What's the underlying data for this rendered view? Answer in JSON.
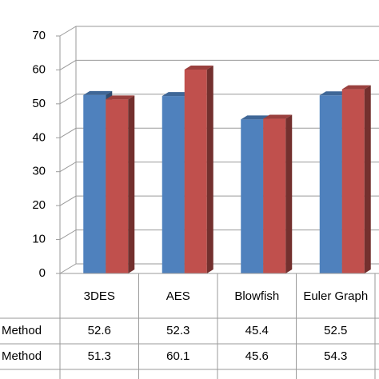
{
  "chart_data": {
    "type": "bar3d",
    "categories": [
      "3DES",
      "AES",
      "Blowfish",
      "Euler Graph"
    ],
    "series": [
      {
        "name": "Method",
        "color": "#4f81bd",
        "values": [
          52.6,
          52.3,
          45.4,
          52.5
        ]
      },
      {
        "name": "Method",
        "color": "#c0504d",
        "values": [
          51.3,
          60.1,
          45.6,
          54.3
        ]
      }
    ],
    "ylim": [
      0,
      70
    ],
    "yticks": [
      0,
      10,
      20,
      30,
      40,
      50,
      60,
      70
    ],
    "grid": true
  }
}
